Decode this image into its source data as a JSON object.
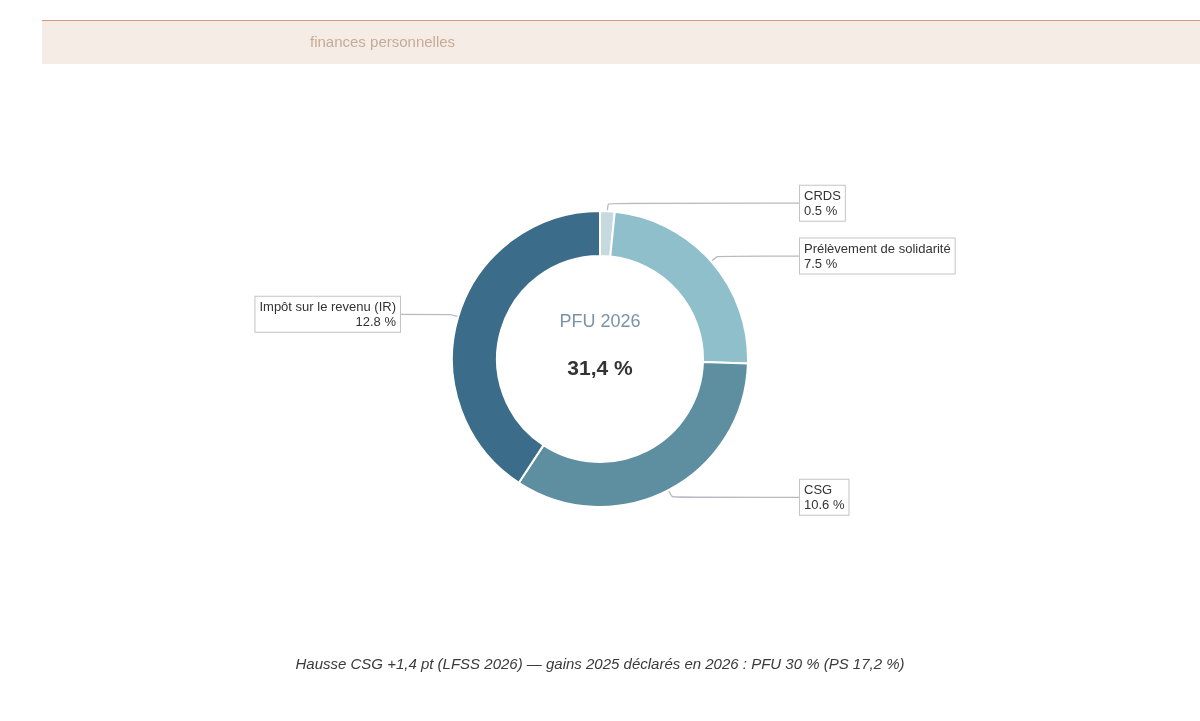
{
  "chart_data": {
    "type": "donut",
    "subtitle": "finances personnelles",
    "categories": [
      "CRDS",
      "Prélèvement de solidarité",
      "CSG",
      "Impôt sur le revenu (IR)"
    ],
    "values": [
      0.5,
      7.5,
      10.6,
      12.8
    ],
    "colors": [
      "#c5d9df",
      "#8ebfca",
      "#5e8fa1",
      "#3b6c89"
    ],
    "value_labels": [
      "0.5 %",
      "7.5 %",
      "10.6 %",
      "12.8 %"
    ],
    "annotations": [
      "PFU 2026",
      "31,4 %",
      "Hausse CSG +1,4 pt (LFSS 2026) — gains 2025 déclarés en 2026 : PFU 30 % (PS 17,2 %)"
    ]
  }
}
